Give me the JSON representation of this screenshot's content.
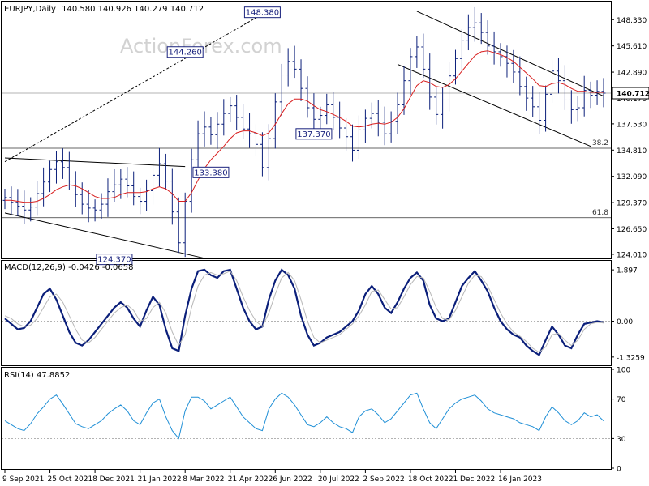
{
  "header": {
    "title": "EURJPY,Daily",
    "ohlc": "140.580 140.926 140.279 140.712"
  },
  "watermark": "ActionForex.com",
  "colors": {
    "candle": "#0b1f7a",
    "ma": "#d81e1e",
    "macd": "#0b1f7a",
    "signal": "#b8b8b8",
    "rsi": "#1f8fd6",
    "axis": "#000000",
    "fib": "#555555"
  },
  "chart_data": [
    {
      "type": "candlestick",
      "title": "EURJPY,Daily 140.580 140.926 140.279 140.712",
      "y_ticks": [
        "148.330",
        "145.610",
        "142.890",
        "140.170",
        "137.530",
        "134.810",
        "132.090",
        "129.370",
        "126.650",
        "124.010"
      ],
      "y_tick_values": [
        148.33,
        145.61,
        142.89,
        140.17,
        137.53,
        134.81,
        132.09,
        129.37,
        126.65,
        124.01
      ],
      "ylim": [
        123.5,
        150.2
      ],
      "last_price": 140.712,
      "last_price_label": "140.712",
      "fib_levels": [
        {
          "label": "38.2",
          "value": 135.0
        },
        {
          "label": "61.8",
          "value": 127.8
        }
      ],
      "annotations": [
        {
          "label": "148.380",
          "x": 40,
          "value": 148.38
        },
        {
          "label": "144.260",
          "x": 28,
          "value": 144.26
        },
        {
          "label": "137.370",
          "x": 48,
          "value": 137.37
        },
        {
          "label": "133.380",
          "x": 32,
          "value": 133.38
        },
        {
          "label": "124.370",
          "x": 17,
          "value": 124.37
        }
      ],
      "close": [
        129.9,
        129.4,
        129.0,
        128.6,
        128.9,
        130.3,
        131.5,
        132.8,
        133.6,
        133.0,
        131.6,
        130.2,
        129.2,
        128.8,
        128.6,
        129.2,
        130.5,
        131.2,
        131.8,
        131.1,
        130.0,
        129.5,
        130.6,
        132.2,
        133.4,
        131.6,
        128.4,
        125.2,
        129.5,
        133.8,
        136.5,
        137.2,
        136.4,
        137.5,
        138.6,
        139.4,
        138.2,
        137.0,
        136.5,
        135.4,
        133.0,
        136.0,
        139.8,
        142.6,
        144.0,
        143.2,
        141.2,
        139.2,
        138.0,
        138.4,
        139.5,
        138.2,
        137.1,
        136.2,
        134.8,
        136.9,
        138.1,
        138.6,
        137.7,
        136.5,
        137.8,
        139.5,
        142.0,
        144.5,
        145.5,
        143.2,
        140.3,
        138.5,
        140.0,
        142.5,
        144.3,
        146.2,
        147.5,
        148.0,
        147.0,
        145.6,
        145.0,
        144.5,
        143.8,
        142.9,
        141.4,
        140.2,
        139.3,
        137.9,
        140.6,
        143.0,
        142.0,
        140.0,
        139.0,
        139.2,
        141.0,
        140.5,
        140.9,
        140.712
      ],
      "ma": [
        129.6,
        129.6,
        129.5,
        129.4,
        129.4,
        129.5,
        129.8,
        130.2,
        130.7,
        131.0,
        131.2,
        131.1,
        130.8,
        130.4,
        130.0,
        129.8,
        129.8,
        129.9,
        130.2,
        130.4,
        130.4,
        130.4,
        130.5,
        130.8,
        131.0,
        130.8,
        130.3,
        129.5,
        129.5,
        130.4,
        131.7,
        132.9,
        133.8,
        134.5,
        135.2,
        136.0,
        136.6,
        136.8,
        136.8,
        136.6,
        136.3,
        136.6,
        137.5,
        138.6,
        139.6,
        140.1,
        140.1,
        139.9,
        139.4,
        139.0,
        138.8,
        138.5,
        138.2,
        137.8,
        137.3,
        137.2,
        137.3,
        137.5,
        137.6,
        137.5,
        137.7,
        138.2,
        139.1,
        140.3,
        141.5,
        142.0,
        141.8,
        141.4,
        141.3,
        141.6,
        142.2,
        143.0,
        143.8,
        144.6,
        145.0,
        145.1,
        144.9,
        144.7,
        144.4,
        144.0,
        143.4,
        142.8,
        142.2,
        141.5,
        141.4,
        141.7,
        141.8,
        141.6,
        141.2,
        140.9,
        140.9,
        140.8,
        140.8,
        140.8
      ],
      "x_ticks": [
        {
          "label": "9 Sep 2021",
          "index": 0
        },
        {
          "label": "25 Oct 2021",
          "index": 7
        },
        {
          "label": "8 Dec 2021",
          "index": 14
        },
        {
          "label": "21 Jan 2022",
          "index": 21
        },
        {
          "label": "8 Mar 2022",
          "index": 28
        },
        {
          "label": "21 Apr 2022",
          "index": 35
        },
        {
          "label": "6 Jun 2022",
          "index": 42
        },
        {
          "label": "20 Jul 2022",
          "index": 49
        },
        {
          "label": "2 Sep 2022",
          "index": 56
        },
        {
          "label": "18 Oct 2022",
          "index": 63
        },
        {
          "label": "1 Dec 2022",
          "index": 70
        },
        {
          "label": "16 Jan 2023",
          "index": 77
        }
      ]
    },
    {
      "type": "line",
      "title": "MACD(12,26,9) -0.0426 -0.0658",
      "y_ticks": [
        "1.897",
        "0.00",
        "-1.3259"
      ],
      "y_tick_values": [
        1.897,
        0.0,
        -1.3259
      ],
      "ylim": [
        -1.6,
        2.2
      ],
      "series": [
        {
          "name": "MACD",
          "values": [
            0.1,
            -0.1,
            -0.3,
            -0.25,
            0.0,
            0.5,
            1.0,
            1.2,
            0.8,
            0.2,
            -0.4,
            -0.8,
            -0.9,
            -0.7,
            -0.4,
            -0.1,
            0.2,
            0.5,
            0.7,
            0.5,
            0.1,
            -0.2,
            0.4,
            0.9,
            0.6,
            -0.3,
            -1.0,
            -1.1,
            0.2,
            1.2,
            1.85,
            1.9,
            1.7,
            1.6,
            1.85,
            1.9,
            1.2,
            0.5,
            0.0,
            -0.3,
            -0.2,
            0.8,
            1.5,
            1.9,
            1.7,
            1.2,
            0.2,
            -0.5,
            -0.9,
            -0.8,
            -0.6,
            -0.5,
            -0.4,
            -0.2,
            0.0,
            0.4,
            1.0,
            1.3,
            1.0,
            0.5,
            0.3,
            0.7,
            1.2,
            1.6,
            1.8,
            1.5,
            0.6,
            0.1,
            0.0,
            0.1,
            0.7,
            1.3,
            1.6,
            1.85,
            1.5,
            1.1,
            0.5,
            0.0,
            -0.3,
            -0.5,
            -0.6,
            -0.9,
            -1.1,
            -1.25,
            -0.7,
            -0.2,
            -0.5,
            -0.9,
            -1.0,
            -0.5,
            -0.1,
            -0.05,
            0.0,
            -0.0426
          ]
        },
        {
          "name": "Signal",
          "values": [
            0.2,
            0.1,
            -0.1,
            -0.2,
            -0.15,
            0.1,
            0.5,
            0.9,
            1.0,
            0.7,
            0.2,
            -0.3,
            -0.7,
            -0.8,
            -0.6,
            -0.3,
            0.0,
            0.3,
            0.5,
            0.6,
            0.4,
            0.0,
            0.1,
            0.5,
            0.7,
            0.3,
            -0.4,
            -0.9,
            -0.5,
            0.5,
            1.3,
            1.7,
            1.8,
            1.7,
            1.75,
            1.85,
            1.5,
            0.9,
            0.4,
            0.0,
            -0.2,
            0.3,
            1.0,
            1.6,
            1.8,
            1.5,
            0.8,
            0.0,
            -0.6,
            -0.8,
            -0.7,
            -0.6,
            -0.5,
            -0.3,
            -0.1,
            0.2,
            0.6,
            1.1,
            1.15,
            0.8,
            0.45,
            0.5,
            0.9,
            1.35,
            1.65,
            1.6,
            1.1,
            0.5,
            0.1,
            0.05,
            0.4,
            0.9,
            1.4,
            1.7,
            1.65,
            1.3,
            0.8,
            0.3,
            -0.1,
            -0.4,
            -0.55,
            -0.75,
            -1.0,
            -1.15,
            -0.95,
            -0.5,
            -0.45,
            -0.7,
            -0.9,
            -0.7,
            -0.3,
            -0.1,
            -0.04,
            -0.0658
          ]
        }
      ],
      "zero_label": "0.00"
    },
    {
      "type": "line",
      "title": "RSI(14) 47.8852",
      "y_ticks": [
        "100",
        "70",
        "30",
        "0"
      ],
      "y_tick_values": [
        100,
        70,
        30,
        0
      ],
      "ylim": [
        0,
        100
      ],
      "levels": [
        70,
        30
      ],
      "series": [
        {
          "name": "RSI",
          "values": [
            48,
            44,
            40,
            38,
            45,
            55,
            62,
            70,
            74,
            65,
            55,
            45,
            42,
            40,
            44,
            48,
            55,
            60,
            64,
            58,
            48,
            44,
            56,
            66,
            70,
            52,
            38,
            30,
            58,
            72,
            72,
            68,
            60,
            64,
            68,
            72,
            62,
            52,
            46,
            40,
            38,
            60,
            70,
            76,
            72,
            64,
            54,
            44,
            42,
            46,
            52,
            46,
            42,
            40,
            36,
            52,
            58,
            60,
            54,
            46,
            50,
            58,
            66,
            74,
            76,
            60,
            46,
            40,
            50,
            60,
            66,
            70,
            72,
            74,
            68,
            60,
            56,
            54,
            52,
            50,
            46,
            44,
            42,
            38,
            52,
            62,
            56,
            48,
            44,
            48,
            56,
            52,
            54,
            47.8852
          ]
        }
      ]
    }
  ]
}
